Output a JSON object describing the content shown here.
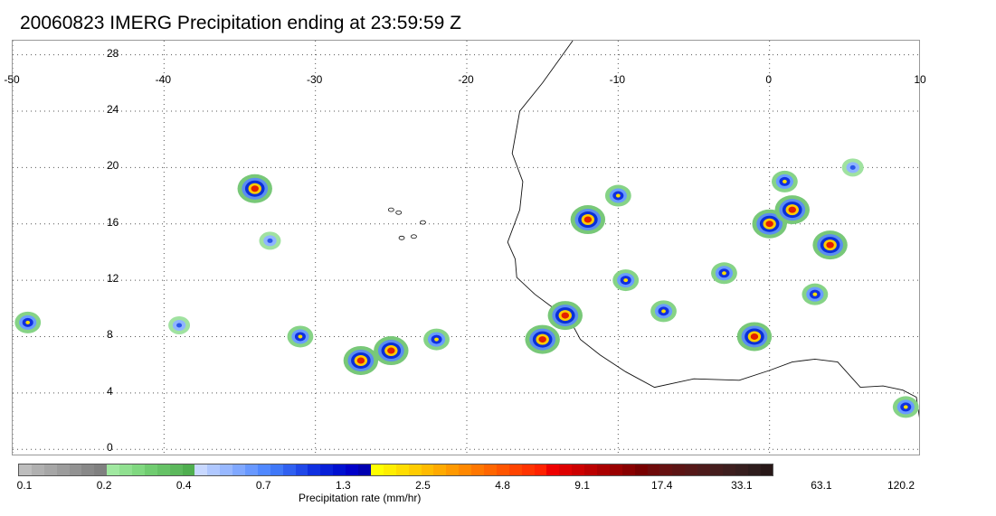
{
  "title": "20060823 IMERG Precipitation ending at 23:59:59 Z",
  "map": {
    "lon_labels": [
      "-50",
      "-40",
      "-30",
      "-20",
      "-10",
      "0",
      "10"
    ],
    "lat_labels": [
      "28",
      "24",
      "20",
      "16",
      "12",
      "8",
      "4",
      "0"
    ],
    "lon_range": [
      -50,
      10
    ],
    "lat_range": [
      -0.5,
      29
    ],
    "grid": "dotted",
    "precip_cells": [
      {
        "lon": -34,
        "lat": 18.5,
        "intensity": "heavy"
      },
      {
        "lon": -12,
        "lat": 16.3,
        "intensity": "heavy"
      },
      {
        "lon": -13.5,
        "lat": 9.5,
        "intensity": "heavy"
      },
      {
        "lon": -15,
        "lat": 7.8,
        "intensity": "heavy"
      },
      {
        "lon": -27,
        "lat": 6.3,
        "intensity": "heavy"
      },
      {
        "lon": -25,
        "lat": 7.0,
        "intensity": "heavy"
      },
      {
        "lon": 0,
        "lat": 16,
        "intensity": "heavy"
      },
      {
        "lon": 1.5,
        "lat": 17,
        "intensity": "heavy"
      },
      {
        "lon": 4,
        "lat": 14.5,
        "intensity": "heavy"
      },
      {
        "lon": 3,
        "lat": 11,
        "intensity": "moderate"
      },
      {
        "lon": -3,
        "lat": 12.5,
        "intensity": "moderate"
      },
      {
        "lon": -9.5,
        "lat": 12,
        "intensity": "moderate"
      },
      {
        "lon": -7,
        "lat": 9.8,
        "intensity": "moderate"
      },
      {
        "lon": -31,
        "lat": 8,
        "intensity": "moderate"
      },
      {
        "lon": -33,
        "lat": 14.8,
        "intensity": "light"
      },
      {
        "lon": -39,
        "lat": 8.8,
        "intensity": "light"
      },
      {
        "lon": -49,
        "lat": 9,
        "intensity": "moderate"
      },
      {
        "lon": -22,
        "lat": 7.8,
        "intensity": "moderate"
      },
      {
        "lon": 9,
        "lat": 3,
        "intensity": "moderate"
      },
      {
        "lon": -1,
        "lat": 8,
        "intensity": "heavy"
      },
      {
        "lon": -10,
        "lat": 18,
        "intensity": "moderate"
      },
      {
        "lon": 1,
        "lat": 19,
        "intensity": "moderate"
      },
      {
        "lon": 5.5,
        "lat": 20,
        "intensity": "light"
      }
    ]
  },
  "colorbar": {
    "title": "Precipitation rate (mm/hr)",
    "tick_labels": [
      "0.1",
      "0.2",
      "0.4",
      "0.7",
      "1.3",
      "2.5",
      "4.8",
      "9.1",
      "17.4",
      "33.1",
      "63.1",
      "120.2"
    ],
    "colors": [
      "#bdbdbd",
      "#b0b0b0",
      "#a6a6a6",
      "#9c9c9c",
      "#929292",
      "#888888",
      "#808080",
      "#a0e8a0",
      "#90e090",
      "#80d880",
      "#70cc70",
      "#66c266",
      "#5cb85c",
      "#4fae4f",
      "#c8d8ff",
      "#b0c8ff",
      "#98b8ff",
      "#80a8ff",
      "#6898ff",
      "#5088ff",
      "#4078f8",
      "#3060f0",
      "#2048e8",
      "#1030e0",
      "#0820d8",
      "#0010d0",
      "#0000c8",
      "#0000b0",
      "#ffff00",
      "#ffee00",
      "#ffdd00",
      "#ffcc00",
      "#ffbb00",
      "#ffaa00",
      "#ff9900",
      "#ff8800",
      "#ff7700",
      "#ff6600",
      "#ff5500",
      "#ff4400",
      "#ff3300",
      "#ff2200",
      "#ee0000",
      "#dd0000",
      "#cc0000",
      "#bb0000",
      "#aa0000",
      "#990000",
      "#880000",
      "#770000",
      "#6e0a0a",
      "#661111",
      "#5c1414",
      "#551818",
      "#4d1b1b",
      "#451d1d",
      "#3d1e1e",
      "#361e1e",
      "#2e1c1c",
      "#281818"
    ]
  }
}
